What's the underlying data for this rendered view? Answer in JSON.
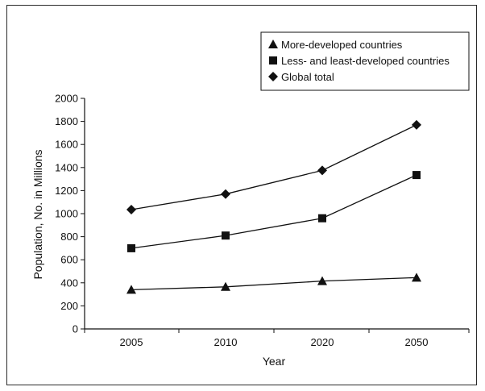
{
  "chart_data": {
    "type": "line",
    "categories": [
      "2005",
      "2010",
      "2020",
      "2050"
    ],
    "ylabel": "Population, No. in Millions",
    "xlabel": "Year",
    "ylim": [
      0,
      2000
    ],
    "yticks": [
      0,
      200,
      400,
      600,
      800,
      1000,
      1200,
      1400,
      1600,
      1800,
      2000
    ],
    "grid": false,
    "legend_position": "top-right",
    "series": [
      {
        "name": "More-developed countries",
        "marker": "triangle",
        "values": [
          340,
          365,
          415,
          445
        ]
      },
      {
        "name": "Less- and least-developed countries",
        "marker": "square",
        "values": [
          700,
          810,
          960,
          1335
        ]
      },
      {
        "name": "Global total",
        "marker": "diamond",
        "values": [
          1035,
          1170,
          1375,
          1770
        ]
      }
    ]
  }
}
